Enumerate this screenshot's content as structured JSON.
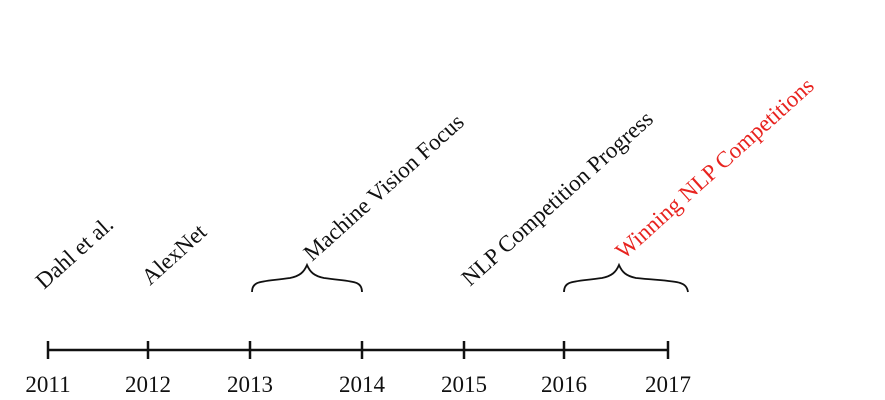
{
  "timeline": {
    "years": [
      "2011",
      "2012",
      "2013",
      "2014",
      "2015",
      "2016",
      "2017"
    ],
    "events": [
      {
        "label": "Dahl et al.",
        "color": "#111111"
      },
      {
        "label": "AlexNet",
        "color": "#111111"
      },
      {
        "label": "Machine Vision Focus",
        "color": "#111111"
      },
      {
        "label": "NLP Competition Progress",
        "color": "#111111"
      },
      {
        "label": "Winning NLP Competitions",
        "color": "#e8231f"
      }
    ]
  }
}
